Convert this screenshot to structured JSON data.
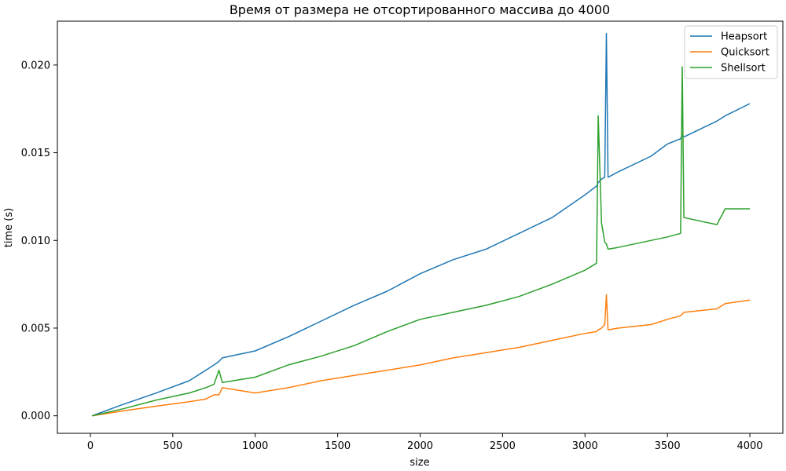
{
  "chart_data": {
    "type": "line",
    "title": "Время от размера не отсортированного массива до 4000",
    "xlabel": "size",
    "ylabel": "time (s)",
    "xlim": [
      -200,
      4200
    ],
    "ylim": [
      -0.001,
      0.0225
    ],
    "x_ticks": [
      0,
      500,
      1000,
      1500,
      2000,
      2500,
      3000,
      3500,
      4000
    ],
    "x_tick_labels": [
      "0",
      "500",
      "1000",
      "1500",
      "2000",
      "2500",
      "3000",
      "3500",
      "4000"
    ],
    "y_ticks": [
      0,
      0.005,
      0.01,
      0.015,
      0.02
    ],
    "y_tick_labels": [
      "0.000",
      "0.005",
      "0.010",
      "0.015",
      "0.020"
    ],
    "grid": false,
    "legend_position": "top-right",
    "x": [
      10,
      200,
      400,
      600,
      700,
      750,
      780,
      800,
      1000,
      1200,
      1400,
      1600,
      1800,
      2000,
      2200,
      2400,
      2600,
      2800,
      3000,
      3070,
      3080,
      3100,
      3120,
      3130,
      3140,
      3200,
      3400,
      3500,
      3580,
      3590,
      3600,
      3800,
      3850,
      4000
    ],
    "series": [
      {
        "name": "Heapsort",
        "color": "#1f77b4",
        "values": [
          0.0,
          0.00065,
          0.0013,
          0.002,
          0.0026,
          0.0029,
          0.0031,
          0.0033,
          0.0037,
          0.0045,
          0.0054,
          0.0063,
          0.0071,
          0.0081,
          0.0089,
          0.0095,
          0.0104,
          0.0113,
          0.0126,
          0.0131,
          0.0133,
          0.0135,
          0.0136,
          0.0218,
          0.0136,
          0.0139,
          0.0148,
          0.0155,
          0.0158,
          0.016,
          0.0159,
          0.0168,
          0.0171,
          0.0178
        ]
      },
      {
        "name": "Quicksort",
        "color": "#ff7f0e",
        "values": [
          0.0,
          0.00028,
          0.00055,
          0.0008,
          0.00095,
          0.0012,
          0.0012,
          0.0016,
          0.0013,
          0.0016,
          0.002,
          0.0023,
          0.0026,
          0.0029,
          0.0033,
          0.0036,
          0.0039,
          0.0043,
          0.0047,
          0.0048,
          0.0049,
          0.005,
          0.0052,
          0.0069,
          0.0049,
          0.005,
          0.0052,
          0.0055,
          0.0057,
          0.0058,
          0.0059,
          0.0061,
          0.0064,
          0.0066
        ]
      },
      {
        "name": "Shellsort",
        "color": "#2ca02c",
        "values": [
          0.0,
          0.0004,
          0.0009,
          0.0013,
          0.0016,
          0.0018,
          0.0026,
          0.0019,
          0.0022,
          0.0029,
          0.0034,
          0.004,
          0.0048,
          0.0055,
          0.0059,
          0.0063,
          0.0068,
          0.0075,
          0.0083,
          0.0087,
          0.0171,
          0.011,
          0.0099,
          0.0098,
          0.0095,
          0.0096,
          0.01,
          0.0102,
          0.0104,
          0.0199,
          0.0113,
          0.0109,
          0.0118,
          0.0118
        ]
      }
    ]
  }
}
